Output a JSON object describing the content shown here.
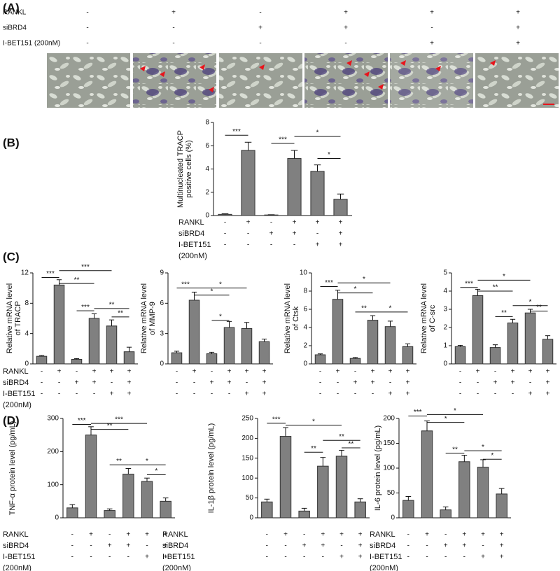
{
  "panel_labels": [
    "(A)",
    "(B)",
    "(C)",
    "(D)"
  ],
  "panel_a": {
    "row_labels": [
      "RANKL",
      "siBRD4",
      "I-BET151 (200nM)"
    ],
    "signs": [
      [
        "-",
        "+",
        "-",
        "+",
        "+",
        "+"
      ],
      [
        "-",
        "-",
        "+",
        "+",
        "-",
        "+"
      ],
      [
        "-",
        "-",
        "-",
        "-",
        "+",
        "+"
      ]
    ]
  },
  "chart_data": [
    {
      "type": "bar",
      "ylabel": [
        "Multinucleated TRACP",
        "positive cells (%)"
      ],
      "color": "#808080",
      "values": [
        0.1,
        5.6,
        0.05,
        4.9,
        3.8,
        1.4
      ],
      "errors": [
        0.05,
        0.7,
        0.02,
        0.7,
        0.55,
        0.45
      ],
      "ylim": [
        0,
        8
      ],
      "yticks": [
        0,
        2,
        4,
        6,
        8
      ],
      "brackets": [
        {
          "from": 0,
          "to": 1,
          "y": 6.9,
          "label": "***"
        },
        {
          "from": 2,
          "to": 3,
          "y": 6.2,
          "label": "***"
        },
        {
          "from": 3,
          "to": 5,
          "y": 6.8,
          "label": "*"
        },
        {
          "from": 4,
          "to": 5,
          "y": 4.9,
          "label": "*"
        }
      ],
      "row_labels": [
        "RANKL",
        "siBRD4",
        "I-BET151",
        "(200nM)"
      ],
      "signs": [
        [
          "-",
          "+",
          "-",
          "+",
          "+",
          "+"
        ],
        [
          "-",
          "-",
          "+",
          "+",
          "-",
          "+"
        ],
        [
          "-",
          "-",
          "-",
          "-",
          "+",
          "+"
        ]
      ]
    },
    {
      "type": "bar",
      "ylabel": [
        "Relative mRNA level",
        "of TRACP"
      ],
      "color": "#808080",
      "values": [
        1.0,
        10.4,
        0.6,
        6.0,
        5.0,
        1.6
      ],
      "errors": [
        0.1,
        0.7,
        0.1,
        0.6,
        0.8,
        0.6
      ],
      "ylim": [
        0,
        12
      ],
      "yticks": [
        0,
        4,
        8,
        12
      ],
      "brackets": [
        {
          "from": 0,
          "to": 1,
          "y": 11.4,
          "label": "***"
        },
        {
          "from": 1,
          "to": 4,
          "y": 12.3,
          "label": "***"
        },
        {
          "from": 1,
          "to": 3,
          "y": 10.6,
          "label": "**"
        },
        {
          "from": 2,
          "to": 3,
          "y": 7.0,
          "label": "***"
        },
        {
          "from": 3,
          "to": 5,
          "y": 7.3,
          "label": "**"
        },
        {
          "from": 4,
          "to": 5,
          "y": 6.2,
          "label": "**"
        }
      ],
      "row_labels": [
        "RANKL",
        "siBRD4",
        "I-BET151",
        "(200nM)"
      ],
      "signs": [
        [
          "-",
          "+",
          "-",
          "+",
          "+",
          "+"
        ],
        [
          "-",
          "-",
          "+",
          "+",
          "-",
          "+"
        ],
        [
          "-",
          "-",
          "-",
          "-",
          "+",
          "+"
        ]
      ]
    },
    {
      "type": "bar",
      "ylabel": [
        "Relative mRNA level",
        "of MMP-9"
      ],
      "color": "#808080",
      "values": [
        1.1,
        6.3,
        1.0,
        3.6,
        3.5,
        2.2
      ],
      "errors": [
        0.15,
        0.8,
        0.15,
        0.6,
        0.6,
        0.25
      ],
      "ylim": [
        0,
        9
      ],
      "yticks": [
        0,
        3,
        6,
        9
      ],
      "brackets": [
        {
          "from": 0,
          "to": 1,
          "y": 7.5,
          "label": "***"
        },
        {
          "from": 1,
          "to": 4,
          "y": 7.5,
          "label": "*"
        },
        {
          "from": 1,
          "to": 3,
          "y": 6.8,
          "label": "*"
        },
        {
          "from": 2,
          "to": 3,
          "y": 4.3,
          "label": "*"
        }
      ],
      "signs": [
        [
          "-",
          "+",
          "-",
          "+",
          "+",
          "+"
        ],
        [
          "-",
          "-",
          "+",
          "+",
          "-",
          "+"
        ],
        [
          "-",
          "-",
          "-",
          "-",
          "+",
          "+"
        ]
      ]
    },
    {
      "type": "bar",
      "ylabel": [
        "Relative mRNA level",
        "of Ctsk"
      ],
      "color": "#808080",
      "values": [
        1.0,
        7.1,
        0.6,
        4.8,
        4.1,
        1.9
      ],
      "errors": [
        0.1,
        1.0,
        0.1,
        0.5,
        0.6,
        0.3
      ],
      "ylim": [
        0,
        10
      ],
      "yticks": [
        0,
        2,
        4,
        6,
        8,
        10
      ],
      "brackets": [
        {
          "from": 0,
          "to": 1,
          "y": 8.5,
          "label": "***"
        },
        {
          "from": 1,
          "to": 4,
          "y": 8.9,
          "label": "*"
        },
        {
          "from": 1,
          "to": 3,
          "y": 7.8,
          "label": "*"
        },
        {
          "from": 2,
          "to": 3,
          "y": 5.7,
          "label": "**"
        },
        {
          "from": 3,
          "to": 5,
          "y": 5.7,
          "label": "*"
        }
      ],
      "signs": [
        [
          "-",
          "+",
          "-",
          "+",
          "+",
          "+"
        ],
        [
          "-",
          "-",
          "+",
          "+",
          "-",
          "+"
        ],
        [
          "-",
          "-",
          "-",
          "-",
          "+",
          "+"
        ]
      ]
    },
    {
      "type": "bar",
      "ylabel": [
        "Relative mRNA level",
        "of C-src"
      ],
      "color": "#808080",
      "values": [
        0.95,
        3.75,
        0.9,
        2.25,
        2.8,
        1.35
      ],
      "errors": [
        0.07,
        0.35,
        0.15,
        0.2,
        0.2,
        0.2
      ],
      "ylim": [
        0,
        5
      ],
      "yticks": [
        0,
        1,
        2,
        3,
        4,
        5
      ],
      "brackets": [
        {
          "from": 0,
          "to": 1,
          "y": 4.2,
          "label": "***"
        },
        {
          "from": 1,
          "to": 4,
          "y": 4.6,
          "label": "*"
        },
        {
          "from": 1,
          "to": 3,
          "y": 4.0,
          "label": "**"
        },
        {
          "from": 2,
          "to": 3,
          "y": 2.6,
          "label": "**"
        },
        {
          "from": 3,
          "to": 5,
          "y": 3.2,
          "label": "*"
        },
        {
          "from": 4,
          "to": 5,
          "y": 2.9,
          "label": "**"
        }
      ],
      "signs": [
        [
          "-",
          "+",
          "-",
          "+",
          "+",
          "+"
        ],
        [
          "-",
          "-",
          "+",
          "+",
          "-",
          "+"
        ],
        [
          "-",
          "-",
          "-",
          "-",
          "+",
          "+"
        ]
      ]
    },
    {
      "type": "bar",
      "ylabel": [
        "TNF-α protein level (pg/mL)"
      ],
      "color": "#808080",
      "values": [
        30,
        250,
        22,
        132,
        110,
        50
      ],
      "errors": [
        10,
        25,
        5,
        17,
        10,
        10
      ],
      "ylim": [
        0,
        300
      ],
      "yticks": [
        0,
        100,
        200,
        300
      ],
      "brackets": [
        {
          "from": 0,
          "to": 1,
          "y": 282,
          "label": "***"
        },
        {
          "from": 1,
          "to": 4,
          "y": 285,
          "label": "***"
        },
        {
          "from": 1,
          "to": 3,
          "y": 267,
          "label": "**"
        },
        {
          "from": 2,
          "to": 3,
          "y": 160,
          "label": "**"
        },
        {
          "from": 3,
          "to": 5,
          "y": 160,
          "label": "*"
        },
        {
          "from": 4,
          "to": 5,
          "y": 130,
          "label": "*"
        }
      ],
      "row_labels": [
        "RANKL",
        "siBRD4",
        "I-BET151",
        "(200nM)"
      ],
      "signs": [
        [
          "-",
          "+",
          "-",
          "+",
          "+",
          "+"
        ],
        [
          "-",
          "-",
          "+",
          "+",
          "-",
          "+"
        ],
        [
          "-",
          "-",
          "-",
          "-",
          "+",
          "+"
        ]
      ]
    },
    {
      "type": "bar",
      "ylabel": [
        "IL-1β protein level (pg/mL)"
      ],
      "color": "#808080",
      "values": [
        40,
        205,
        17,
        130,
        155,
        40
      ],
      "errors": [
        7,
        22,
        7,
        22,
        15,
        8
      ],
      "ylim": [
        0,
        250
      ],
      "yticks": [
        0,
        50,
        100,
        150,
        200,
        250
      ],
      "brackets": [
        {
          "from": 0,
          "to": 1,
          "y": 238,
          "label": "***"
        },
        {
          "from": 1,
          "to": 4,
          "y": 233,
          "label": "*"
        },
        {
          "from": 2,
          "to": 3,
          "y": 165,
          "label": "**"
        },
        {
          "from": 3,
          "to": 5,
          "y": 195,
          "label": "**"
        },
        {
          "from": 4,
          "to": 5,
          "y": 176,
          "label": "**"
        }
      ],
      "row_labels": [
        "RANKL",
        "siBRD4",
        "I-BET151",
        "(200nM)"
      ],
      "signs": [
        [
          "-",
          "+",
          "-",
          "+",
          "+",
          "+"
        ],
        [
          "-",
          "-",
          "+",
          "+",
          "-",
          "+"
        ],
        [
          "-",
          "-",
          "-",
          "-",
          "+",
          "+"
        ]
      ]
    },
    {
      "type": "bar",
      "ylabel": [
        "IL-6 protein level (pg/mL)"
      ],
      "color": "#808080",
      "values": [
        35,
        175,
        16,
        113,
        102,
        48
      ],
      "errors": [
        8,
        20,
        6,
        13,
        15,
        11
      ],
      "ylim": [
        0,
        200
      ],
      "yticks": [
        0,
        50,
        100,
        150,
        200
      ],
      "brackets": [
        {
          "from": 0,
          "to": 1,
          "y": 205,
          "label": "***"
        },
        {
          "from": 1,
          "to": 4,
          "y": 208,
          "label": "*"
        },
        {
          "from": 1,
          "to": 3,
          "y": 192,
          "label": "*"
        },
        {
          "from": 2,
          "to": 3,
          "y": 130,
          "label": "**"
        },
        {
          "from": 3,
          "to": 5,
          "y": 135,
          "label": "*"
        },
        {
          "from": 4,
          "to": 5,
          "y": 118,
          "label": "*"
        }
      ],
      "row_labels": [
        "RANKL",
        "siBRD4",
        "I-BET151",
        "(200nM)"
      ],
      "signs": [
        [
          "-",
          "+",
          "-",
          "+",
          "+",
          "+"
        ],
        [
          "-",
          "-",
          "+",
          "+",
          "-",
          "+"
        ],
        [
          "-",
          "-",
          "-",
          "-",
          "+",
          "+"
        ]
      ]
    }
  ]
}
